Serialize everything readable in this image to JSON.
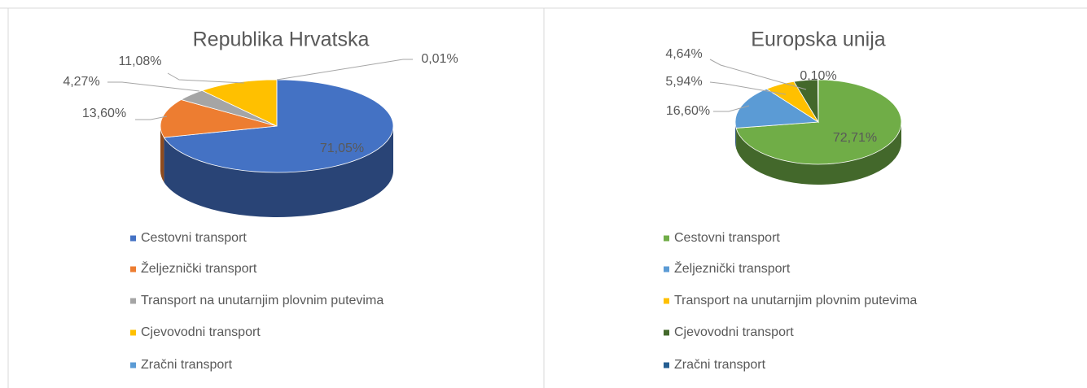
{
  "chart_data": [
    {
      "type": "pie",
      "title": "Republika Hrvatska",
      "categories": [
        "Cestovni transport",
        "Željeznički transport",
        "Transport na unutarnjim plovnim putevima",
        "Cjevovodni transport",
        "Zračni transport"
      ],
      "values": [
        71.05,
        13.6,
        4.27,
        11.08,
        0.01
      ],
      "value_labels": [
        "71,05%",
        "13,60%",
        "4,27%",
        "11,08%",
        "0,01%"
      ],
      "colors": [
        "#4472c4",
        "#ed7d31",
        "#a5a5a5",
        "#ffc000",
        "#5b9bd5"
      ]
    },
    {
      "type": "pie",
      "title": "Europska unija",
      "categories": [
        "Cestovni transport",
        "Željeznički transport",
        "Transport na unutarnjim plovnim putevima",
        "Cjevovodni transport",
        "Zračni transport"
      ],
      "values": [
        72.71,
        16.6,
        5.94,
        4.64,
        0.1
      ],
      "value_labels": [
        "72,71%",
        "16,60%",
        "5,94%",
        "4,64%",
        "0,10%"
      ],
      "colors": [
        "#70ad47",
        "#5b9bd5",
        "#ffc000",
        "#43682b",
        "#255e91"
      ]
    }
  ]
}
